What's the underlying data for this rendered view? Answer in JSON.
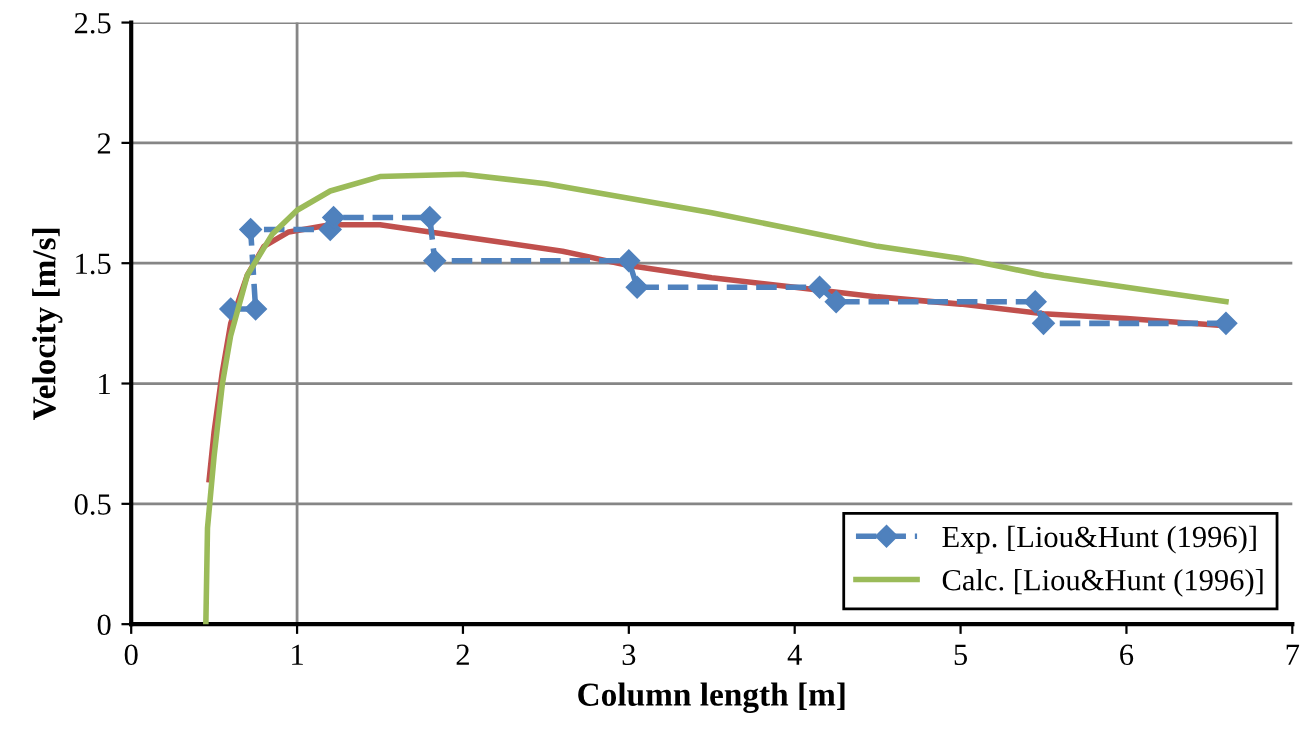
{
  "chart_data": {
    "type": "line",
    "xlabel": "Column length [m]",
    "ylabel": "Velocity [m/s]",
    "xlim": [
      0,
      7
    ],
    "xticks": [
      0,
      1,
      2,
      3,
      4,
      5,
      6,
      7
    ],
    "ylim": [
      0,
      2.5
    ],
    "yticks": [
      0,
      0.5,
      1,
      1.5,
      2,
      2.5
    ],
    "grid": "y",
    "legend": "bottom right",
    "ref_lines": [
      {
        "axis": "x",
        "value": 1,
        "label": null,
        "color": "#868686"
      }
    ],
    "series": [
      {
        "color": "#c0504d",
        "line_style": "solid",
        "marker": "none",
        "x": [
          0.47,
          0.5,
          0.55,
          0.6,
          0.7,
          0.8,
          0.95,
          1.2,
          1.5,
          1.8,
          2.2,
          2.6,
          3.0,
          3.5,
          4.0,
          4.5,
          5.0,
          5.5,
          6.0,
          6.6
        ],
        "values": [
          0.6,
          0.8,
          1.05,
          1.25,
          1.45,
          1.57,
          1.63,
          1.66,
          1.66,
          1.63,
          1.59,
          1.55,
          1.49,
          1.44,
          1.4,
          1.36,
          1.33,
          1.29,
          1.27,
          1.24
        ]
      },
      {
        "name": "Exp. [Liou&Hunt (1996)]",
        "color": "#4f81bd",
        "line_style": "dashed",
        "marker": "diamond",
        "x": [
          0.6,
          0.75,
          0.72,
          1.2,
          1.22,
          1.8,
          1.83,
          3.0,
          3.05,
          4.15,
          4.25,
          5.45,
          5.5,
          6.6
        ],
        "values": [
          1.31,
          1.31,
          1.64,
          1.64,
          1.69,
          1.69,
          1.51,
          1.51,
          1.4,
          1.4,
          1.34,
          1.34,
          1.25,
          1.25
        ]
      },
      {
        "name": "Calc. [Liou&Hunt (1996)]",
        "color": "#9bbb59",
        "line_style": "solid",
        "marker": "none",
        "x": [
          0.45,
          0.46,
          0.5,
          0.55,
          0.6,
          0.7,
          0.85,
          1.0,
          1.2,
          1.5,
          2.0,
          2.5,
          3.0,
          3.5,
          4.0,
          4.5,
          5.0,
          5.5,
          6.0,
          6.6
        ],
        "values": [
          0,
          0.4,
          0.7,
          1.0,
          1.2,
          1.45,
          1.62,
          1.72,
          1.8,
          1.86,
          1.87,
          1.83,
          1.77,
          1.71,
          1.64,
          1.57,
          1.52,
          1.45,
          1.4,
          1.34
        ]
      }
    ]
  }
}
